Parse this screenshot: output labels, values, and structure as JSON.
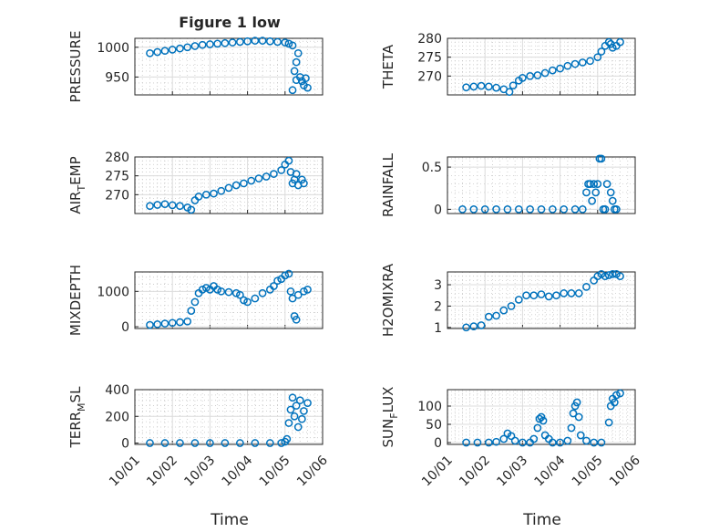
{
  "figure": {
    "title": "Figure 1 low",
    "xlabel": "Time",
    "x_ticks": [
      "10/01",
      "10/02",
      "10/03",
      "10/04",
      "10/05",
      "10/06"
    ]
  },
  "chart_data": [
    {
      "type": "scatter",
      "ylabel": "PRESSURE",
      "xlim": [
        "10/01",
        "10/06"
      ],
      "ylim": [
        920,
        1015
      ],
      "y_ticks": [
        950,
        1000
      ],
      "color": "#0072BD",
      "points": [
        [
          0.4,
          990
        ],
        [
          0.6,
          992
        ],
        [
          0.8,
          994
        ],
        [
          1.0,
          996
        ],
        [
          1.2,
          998
        ],
        [
          1.4,
          1000
        ],
        [
          1.6,
          1002
        ],
        [
          1.8,
          1004
        ],
        [
          2.0,
          1005
        ],
        [
          2.2,
          1006
        ],
        [
          2.4,
          1007
        ],
        [
          2.6,
          1008
        ],
        [
          2.8,
          1009
        ],
        [
          3.0,
          1010
        ],
        [
          3.2,
          1011
        ],
        [
          3.4,
          1011
        ],
        [
          3.6,
          1010
        ],
        [
          3.8,
          1009
        ],
        [
          4.0,
          1008
        ],
        [
          4.1,
          1006
        ],
        [
          4.2,
          1003
        ],
        [
          4.25,
          960
        ],
        [
          4.3,
          975
        ],
        [
          4.35,
          990
        ],
        [
          4.4,
          950
        ],
        [
          4.45,
          943
        ],
        [
          4.5,
          936
        ],
        [
          4.55,
          948
        ],
        [
          4.6,
          932
        ],
        [
          4.2,
          928
        ],
        [
          4.3,
          945
        ]
      ]
    },
    {
      "type": "scatter",
      "ylabel": "THETA",
      "xlim": [
        "10/01",
        "10/06"
      ],
      "ylim": [
        265,
        280
      ],
      "y_ticks": [
        270,
        275,
        280
      ],
      "color": "#0072BD",
      "points": [
        [
          0.5,
          267
        ],
        [
          0.7,
          267.2
        ],
        [
          0.9,
          267.4
        ],
        [
          1.1,
          267.2
        ],
        [
          1.3,
          266.9
        ],
        [
          1.5,
          266.5
        ],
        [
          1.65,
          265.8
        ],
        [
          1.75,
          267.5
        ],
        [
          1.9,
          268.8
        ],
        [
          2.0,
          269.5
        ],
        [
          2.2,
          270
        ],
        [
          2.4,
          270.2
        ],
        [
          2.6,
          270.8
        ],
        [
          2.8,
          271.5
        ],
        [
          3.0,
          272
        ],
        [
          3.2,
          272.7
        ],
        [
          3.4,
          273.2
        ],
        [
          3.6,
          273.6
        ],
        [
          3.8,
          274
        ],
        [
          4.0,
          275
        ],
        [
          4.1,
          276.5
        ],
        [
          4.2,
          278
        ],
        [
          4.3,
          279
        ],
        [
          4.35,
          278.5
        ],
        [
          4.4,
          277.5
        ],
        [
          4.5,
          278
        ],
        [
          4.6,
          279
        ]
      ]
    },
    {
      "type": "scatter",
      "ylabel": "AIR_TEMP",
      "xlim": [
        "10/01",
        "10/06"
      ],
      "ylim": [
        265,
        280
      ],
      "y_ticks": [
        270,
        275,
        280
      ],
      "color": "#0072BD",
      "points": [
        [
          0.4,
          267
        ],
        [
          0.6,
          267.3
        ],
        [
          0.8,
          267.5
        ],
        [
          1.0,
          267.2
        ],
        [
          1.2,
          267
        ],
        [
          1.4,
          266.6
        ],
        [
          1.5,
          266
        ],
        [
          1.6,
          268.5
        ],
        [
          1.7,
          269.5
        ],
        [
          1.9,
          270
        ],
        [
          2.1,
          270.3
        ],
        [
          2.3,
          271
        ],
        [
          2.5,
          271.8
        ],
        [
          2.7,
          272.5
        ],
        [
          2.9,
          273
        ],
        [
          3.1,
          273.7
        ],
        [
          3.3,
          274.3
        ],
        [
          3.5,
          274.8
        ],
        [
          3.7,
          275.5
        ],
        [
          3.9,
          276.5
        ],
        [
          4.0,
          278
        ],
        [
          4.1,
          279
        ],
        [
          4.15,
          276
        ],
        [
          4.2,
          273
        ],
        [
          4.25,
          274
        ],
        [
          4.3,
          275.5
        ],
        [
          4.35,
          272.5
        ],
        [
          4.45,
          274
        ],
        [
          4.5,
          273
        ]
      ]
    },
    {
      "type": "scatter",
      "ylabel": "RAINFALL",
      "xlim": [
        "10/01",
        "10/06"
      ],
      "ylim": [
        -0.05,
        0.62
      ],
      "y_ticks": [
        0,
        0.5
      ],
      "color": "#0072BD",
      "points": [
        [
          0.4,
          0
        ],
        [
          0.7,
          0
        ],
        [
          1.0,
          0
        ],
        [
          1.3,
          0
        ],
        [
          1.6,
          0
        ],
        [
          1.9,
          0
        ],
        [
          2.2,
          0
        ],
        [
          2.5,
          0
        ],
        [
          2.8,
          0
        ],
        [
          3.1,
          0
        ],
        [
          3.4,
          0
        ],
        [
          3.6,
          0
        ],
        [
          3.7,
          0.2
        ],
        [
          3.75,
          0.3
        ],
        [
          3.8,
          0.3
        ],
        [
          3.85,
          0.1
        ],
        [
          3.9,
          0.3
        ],
        [
          3.95,
          0.2
        ],
        [
          4.0,
          0.3
        ],
        [
          4.05,
          0.6
        ],
        [
          4.1,
          0.6
        ],
        [
          4.15,
          0
        ],
        [
          4.2,
          0
        ],
        [
          4.25,
          0.3
        ],
        [
          4.35,
          0.2
        ],
        [
          4.4,
          0.1
        ],
        [
          4.45,
          0
        ],
        [
          4.5,
          0
        ]
      ]
    },
    {
      "type": "scatter",
      "ylabel": "MIXDEPTH",
      "xlim": [
        "10/01",
        "10/06"
      ],
      "ylim": [
        -50,
        1550
      ],
      "y_ticks": [
        0,
        1000
      ],
      "color": "#0072BD",
      "points": [
        [
          0.4,
          50
        ],
        [
          0.6,
          70
        ],
        [
          0.8,
          90
        ],
        [
          1.0,
          110
        ],
        [
          1.2,
          130
        ],
        [
          1.4,
          150
        ],
        [
          1.5,
          450
        ],
        [
          1.6,
          700
        ],
        [
          1.7,
          950
        ],
        [
          1.8,
          1050
        ],
        [
          1.9,
          1100
        ],
        [
          2.0,
          1050
        ],
        [
          2.1,
          1150
        ],
        [
          2.2,
          1050
        ],
        [
          2.3,
          1000
        ],
        [
          2.5,
          980
        ],
        [
          2.7,
          950
        ],
        [
          2.8,
          900
        ],
        [
          2.9,
          750
        ],
        [
          3.0,
          700
        ],
        [
          3.2,
          800
        ],
        [
          3.4,
          950
        ],
        [
          3.6,
          1050
        ],
        [
          3.7,
          1150
        ],
        [
          3.8,
          1300
        ],
        [
          3.9,
          1350
        ],
        [
          4.0,
          1450
        ],
        [
          4.1,
          1500
        ],
        [
          4.15,
          1000
        ],
        [
          4.2,
          800
        ],
        [
          4.25,
          300
        ],
        [
          4.3,
          200
        ],
        [
          4.35,
          900
        ],
        [
          4.5,
          1000
        ],
        [
          4.6,
          1050
        ]
      ]
    },
    {
      "type": "scatter",
      "ylabel": "H2OMIXRA",
      "xlim": [
        "10/01",
        "10/06"
      ],
      "ylim": [
        0.95,
        3.6
      ],
      "y_ticks": [
        1,
        2,
        3
      ],
      "color": "#0072BD",
      "points": [
        [
          0.5,
          1.0
        ],
        [
          0.7,
          1.05
        ],
        [
          0.9,
          1.1
        ],
        [
          1.1,
          1.5
        ],
        [
          1.3,
          1.55
        ],
        [
          1.5,
          1.8
        ],
        [
          1.7,
          2.0
        ],
        [
          1.9,
          2.3
        ],
        [
          2.1,
          2.5
        ],
        [
          2.3,
          2.5
        ],
        [
          2.5,
          2.55
        ],
        [
          2.7,
          2.45
        ],
        [
          2.9,
          2.5
        ],
        [
          3.1,
          2.6
        ],
        [
          3.3,
          2.6
        ],
        [
          3.5,
          2.6
        ],
        [
          3.7,
          2.9
        ],
        [
          3.9,
          3.2
        ],
        [
          4.0,
          3.4
        ],
        [
          4.1,
          3.5
        ],
        [
          4.2,
          3.4
        ],
        [
          4.3,
          3.45
        ],
        [
          4.4,
          3.5
        ],
        [
          4.5,
          3.5
        ],
        [
          4.6,
          3.4
        ]
      ]
    },
    {
      "type": "scatter",
      "ylabel": "TERR_MSL",
      "xlim": [
        "10/01",
        "10/06"
      ],
      "ylim": [
        -10,
        400
      ],
      "y_ticks": [
        0,
        200,
        400
      ],
      "color": "#0072BD",
      "points": [
        [
          0.4,
          0
        ],
        [
          0.8,
          0
        ],
        [
          1.2,
          0
        ],
        [
          1.6,
          0
        ],
        [
          2.0,
          0
        ],
        [
          2.4,
          0
        ],
        [
          2.8,
          0
        ],
        [
          3.2,
          0
        ],
        [
          3.6,
          0
        ],
        [
          3.9,
          0
        ],
        [
          4.0,
          10
        ],
        [
          4.05,
          30
        ],
        [
          4.1,
          150
        ],
        [
          4.15,
          250
        ],
        [
          4.2,
          340
        ],
        [
          4.25,
          200
        ],
        [
          4.3,
          280
        ],
        [
          4.35,
          120
        ],
        [
          4.4,
          320
        ],
        [
          4.45,
          180
        ],
        [
          4.5,
          240
        ],
        [
          4.6,
          300
        ]
      ]
    },
    {
      "type": "scatter",
      "ylabel": "SUN_FLUX",
      "xlim": [
        "10/01",
        "10/06"
      ],
      "ylim": [
        -5,
        145
      ],
      "y_ticks": [
        0,
        50,
        100
      ],
      "color": "#0072BD",
      "points": [
        [
          0.5,
          0
        ],
        [
          0.8,
          0
        ],
        [
          1.1,
          0
        ],
        [
          1.3,
          2
        ],
        [
          1.5,
          10
        ],
        [
          1.6,
          25
        ],
        [
          1.7,
          18
        ],
        [
          1.8,
          5
        ],
        [
          2.0,
          0
        ],
        [
          2.2,
          0
        ],
        [
          2.3,
          10
        ],
        [
          2.4,
          40
        ],
        [
          2.45,
          65
        ],
        [
          2.5,
          70
        ],
        [
          2.55,
          60
        ],
        [
          2.6,
          20
        ],
        [
          2.7,
          10
        ],
        [
          2.8,
          0
        ],
        [
          3.0,
          0
        ],
        [
          3.2,
          5
        ],
        [
          3.3,
          40
        ],
        [
          3.35,
          80
        ],
        [
          3.4,
          100
        ],
        [
          3.45,
          110
        ],
        [
          3.5,
          70
        ],
        [
          3.55,
          20
        ],
        [
          3.7,
          5
        ],
        [
          3.9,
          0
        ],
        [
          4.1,
          0
        ],
        [
          4.3,
          55
        ],
        [
          4.35,
          100
        ],
        [
          4.4,
          120
        ],
        [
          4.45,
          110
        ],
        [
          4.5,
          130
        ],
        [
          4.6,
          135
        ]
      ]
    }
  ]
}
